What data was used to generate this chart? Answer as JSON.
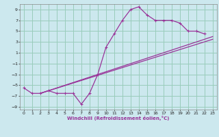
{
  "xlabel": "Windchill (Refroidissement éolien,°C)",
  "background_color": "#cce8ee",
  "grid_color": "#99ccbb",
  "line_color": "#993399",
  "xlim": [
    -0.5,
    23.5
  ],
  "ylim": [
    -9.5,
    10.0
  ],
  "xticks": [
    0,
    1,
    2,
    3,
    4,
    5,
    6,
    7,
    8,
    9,
    10,
    11,
    12,
    13,
    14,
    15,
    16,
    17,
    18,
    19,
    20,
    21,
    22,
    23
  ],
  "yticks": [
    -9,
    -7,
    -5,
    -3,
    -1,
    1,
    3,
    5,
    7,
    9
  ],
  "series1_x": [
    0,
    1,
    2,
    3,
    4,
    5,
    6,
    7,
    8,
    9,
    10,
    11,
    12,
    13,
    14,
    15,
    16,
    17,
    18,
    19,
    20,
    21,
    22
  ],
  "series1_y": [
    -5.5,
    -6.5,
    -6.5,
    -6.0,
    -6.5,
    -6.5,
    -6.5,
    -8.5,
    -6.5,
    -3.0,
    2.0,
    4.5,
    7.0,
    9.0,
    9.5,
    8.0,
    7.0,
    7.0,
    7.0,
    6.5,
    5.0,
    5.0,
    4.5
  ],
  "series2_x": [
    2,
    23
  ],
  "series2_y": [
    -6.5,
    4.0
  ],
  "series3_x": [
    2,
    23
  ],
  "series3_y": [
    -6.5,
    3.5
  ],
  "marker": "+"
}
